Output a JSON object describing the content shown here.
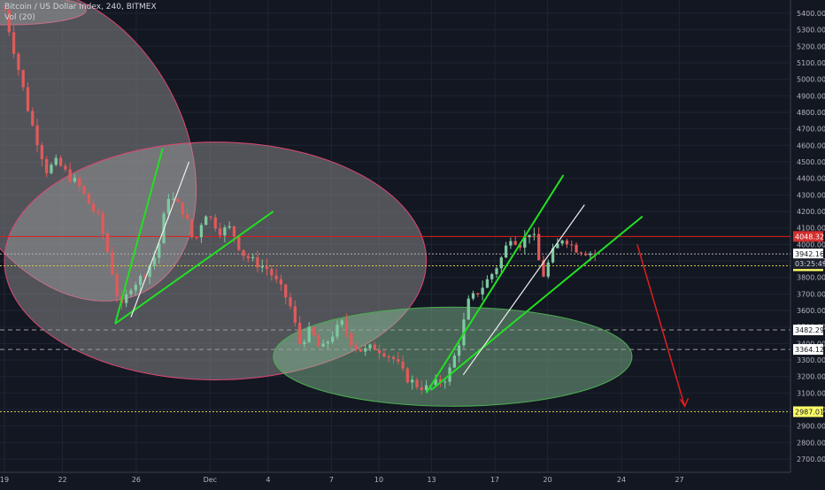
{
  "header": {
    "symbol_title": "Bitcoin / US Dollar Index, 240, BITMEX",
    "volume_label": "Vol (20)"
  },
  "colors": {
    "background": "#131722",
    "grid": "#1e2433",
    "axis_text": "#b2b5be",
    "candle_up": "#7ec9a0",
    "candle_down": "#e05a5a",
    "trend_green": "#22e022",
    "trend_white": "#eeeeee",
    "ellipse_fill": "#a7a7a7",
    "ellipse_green": "#8fcf9f",
    "ellipse_stroke": "#e04870",
    "resistance": "#e01e1e",
    "dashed_level": "#9e9e9e",
    "dotted_level": "#d4c74a",
    "arrow": "#e01e1e",
    "price_badge_red": "#d32f2f",
    "price_badge_yellow": "#ffff66",
    "price_badge_white": "#ffffff"
  },
  "chart_data": {
    "type": "candlestick",
    "title": "Bitcoin / US Dollar Index, 240, BITMEX",
    "ylim": [
      2620,
      5480
    ],
    "x_ticks": [
      "19",
      "22",
      "26",
      "Dec",
      "4",
      "7",
      "10",
      "13",
      "17",
      "20",
      "24",
      "27"
    ],
    "y_ticks": [
      2700,
      2800,
      2900,
      3000,
      3100,
      3200,
      3300,
      3400,
      3500,
      3600,
      3700,
      3800,
      3900,
      4000,
      4100,
      4200,
      4300,
      4400,
      4500,
      4600,
      4700,
      4800,
      4900,
      5000,
      5100,
      5200,
      5300,
      5400
    ],
    "last_bar_index": 126,
    "projection_end_index": 141,
    "price_path": [
      [
        0,
        5420
      ],
      [
        2,
        5150
      ],
      [
        5,
        4750
      ],
      [
        8,
        4450
      ],
      [
        10,
        4500
      ],
      [
        12,
        4420
      ],
      [
        14,
        4360
      ],
      [
        16,
        4250
      ],
      [
        18,
        4150
      ],
      [
        20,
        3900
      ],
      [
        22,
        3600
      ],
      [
        24,
        3750
      ],
      [
        26,
        3800
      ],
      [
        29,
        3950
      ],
      [
        31,
        4300
      ],
      [
        34,
        4200
      ],
      [
        36,
        4000
      ],
      [
        38,
        4200
      ],
      [
        41,
        4080
      ],
      [
        43,
        4100
      ],
      [
        45,
        3950
      ],
      [
        47,
        3900
      ],
      [
        50,
        3850
      ],
      [
        52,
        3750
      ],
      [
        54,
        3650
      ],
      [
        56,
        3400
      ],
      [
        58,
        3480
      ],
      [
        60,
        3350
      ],
      [
        62,
        3450
      ],
      [
        64,
        3520
      ],
      [
        66,
        3400
      ],
      [
        68,
        3350
      ],
      [
        70,
        3380
      ],
      [
        72,
        3350
      ],
      [
        74,
        3300
      ],
      [
        76,
        3200
      ],
      [
        78,
        3150
      ],
      [
        80,
        3130
      ],
      [
        82,
        3160
      ],
      [
        84,
        3200
      ],
      [
        86,
        3380
      ],
      [
        88,
        3650
      ],
      [
        90,
        3720
      ],
      [
        92,
        3800
      ],
      [
        94,
        3900
      ],
      [
        96,
        4050
      ],
      [
        98,
        4000
      ],
      [
        100,
        4100
      ],
      [
        102,
        3800
      ],
      [
        104,
        3950
      ],
      [
        106,
        4050
      ],
      [
        108,
        3980
      ],
      [
        110,
        3960
      ],
      [
        112,
        3942
      ]
    ],
    "levels": [
      {
        "price": 4048.32,
        "label": "4048.32",
        "style": "solid",
        "color": "#e01e1e"
      },
      {
        "price": 3942.16,
        "label": "3942.16",
        "style": "dotted",
        "color": "#b0b0b0"
      },
      {
        "price": 3870.65,
        "label": "3870.65",
        "style": "dotted",
        "color": "#d4c74a"
      },
      {
        "price": 3482.29,
        "label": "3482.29",
        "style": "dashed",
        "color": "#9e9e9e"
      },
      {
        "price": 3364.12,
        "label": "3364.12",
        "style": "dashed",
        "color": "#9e9e9e"
      },
      {
        "price": 2987.01,
        "label": "2987.01",
        "style": "dotted",
        "color": "#d4c74a"
      }
    ],
    "countdown_label": "03:25:49",
    "annotations": {
      "ellipses": [
        {
          "x_center": 0.5,
          "y_center": 5420,
          "x_radius": 15,
          "y_radius": 90,
          "fill": "gray"
        },
        {
          "x_center": 12,
          "y_center": 4600,
          "x_radius": 22,
          "y_radius": 1000,
          "fill": "gray"
        },
        {
          "x_center": 40,
          "y_center": 3900,
          "x_radius": 40,
          "y_radius": 720,
          "fill": "gray"
        },
        {
          "x_center": 85,
          "y_center": 3320,
          "x_radius": 34,
          "y_radius": 300,
          "fill": "green"
        }
      ],
      "green_lines": [
        [
          [
            21,
            3520
          ],
          [
            30,
            4580
          ]
        ],
        [
          [
            21,
            3520
          ],
          [
            51,
            4200
          ]
        ],
        [
          [
            80,
            3100
          ],
          [
            106,
            4420
          ]
        ],
        [
          [
            81,
            3120
          ],
          [
            121,
            4170
          ]
        ]
      ],
      "white_lines": [
        [
          [
            24,
            3560
          ],
          [
            35,
            4500
          ]
        ],
        [
          [
            87,
            3210
          ],
          [
            110,
            4240
          ]
        ]
      ],
      "arrow": [
        [
          120,
          4000
        ],
        [
          129,
          3020
        ]
      ]
    }
  }
}
